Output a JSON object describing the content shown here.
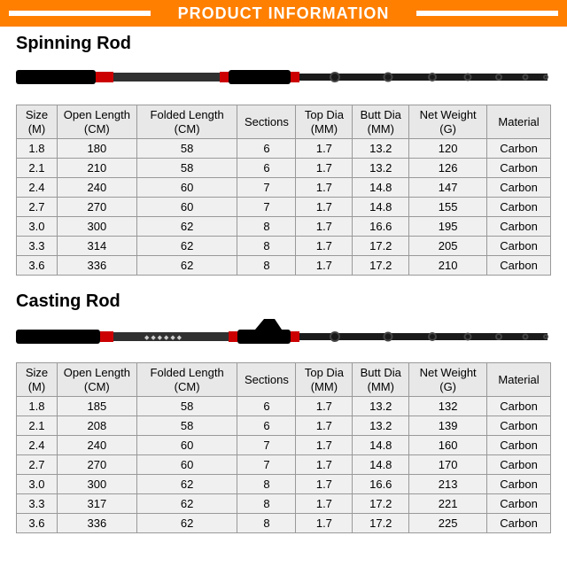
{
  "header": {
    "title": "PRODUCT INFORMATION"
  },
  "colors": {
    "header_bg": "#ff7f00",
    "header_text": "#ffffff",
    "table_border": "#999999",
    "table_cell_bg": "#f0f0f0",
    "table_header_bg": "#e8e8e8",
    "text": "#000000",
    "rod_handle": "#000000",
    "rod_accent": "#cc0000",
    "rod_shaft": "#303030"
  },
  "spinning": {
    "title": "Spinning Rod",
    "columns": [
      {
        "l1": "Size",
        "l2": "(M)"
      },
      {
        "l1": "Open Length",
        "l2": "(CM)"
      },
      {
        "l1": "Folded   Length",
        "l2": "(CM)"
      },
      {
        "l1": "Sections",
        "l2": ""
      },
      {
        "l1": "Top Dia",
        "l2": "(MM)"
      },
      {
        "l1": "Butt Dia",
        "l2": "(MM)"
      },
      {
        "l1": "Net   Weight",
        "l2": "(G)"
      },
      {
        "l1": "Material",
        "l2": ""
      }
    ],
    "rows": [
      [
        "1.8",
        "180",
        "58",
        "6",
        "1.7",
        "13.2",
        "120",
        "Carbon"
      ],
      [
        "2.1",
        "210",
        "58",
        "6",
        "1.7",
        "13.2",
        "126",
        "Carbon"
      ],
      [
        "2.4",
        "240",
        "60",
        "7",
        "1.7",
        "14.8",
        "147",
        "Carbon"
      ],
      [
        "2.7",
        "270",
        "60",
        "7",
        "1.7",
        "14.8",
        "155",
        "Carbon"
      ],
      [
        "3.0",
        "300",
        "62",
        "8",
        "1.7",
        "16.6",
        "195",
        "Carbon"
      ],
      [
        "3.3",
        "314",
        "62",
        "8",
        "1.7",
        "17.2",
        "205",
        "Carbon"
      ],
      [
        "3.6",
        "336",
        "62",
        "8",
        "1.7",
        "17.2",
        "210",
        "Carbon"
      ]
    ]
  },
  "casting": {
    "title": "Casting Rod",
    "columns": [
      {
        "l1": "Size",
        "l2": "(M)"
      },
      {
        "l1": "Open Length",
        "l2": "(CM)"
      },
      {
        "l1": "Folded   Length",
        "l2": "(CM)"
      },
      {
        "l1": "Sections",
        "l2": ""
      },
      {
        "l1": "Top Dia",
        "l2": "(MM)"
      },
      {
        "l1": "Butt Dia",
        "l2": "(MM)"
      },
      {
        "l1": "Net   Weight",
        "l2": "(G)"
      },
      {
        "l1": "Material",
        "l2": ""
      }
    ],
    "rows": [
      [
        "1.8",
        "185",
        "58",
        "6",
        "1.7",
        "13.2",
        "132",
        "Carbon"
      ],
      [
        "2.1",
        "208",
        "58",
        "6",
        "1.7",
        "13.2",
        "139",
        "Carbon"
      ],
      [
        "2.4",
        "240",
        "60",
        "7",
        "1.7",
        "14.8",
        "160",
        "Carbon"
      ],
      [
        "2.7",
        "270",
        "60",
        "7",
        "1.7",
        "14.8",
        "170",
        "Carbon"
      ],
      [
        "3.0",
        "300",
        "62",
        "8",
        "1.7",
        "16.6",
        "213",
        "Carbon"
      ],
      [
        "3.3",
        "317",
        "62",
        "8",
        "1.7",
        "17.2",
        "221",
        "Carbon"
      ],
      [
        "3.6",
        "336",
        "62",
        "8",
        "1.7",
        "17.2",
        "225",
        "Carbon"
      ]
    ]
  }
}
